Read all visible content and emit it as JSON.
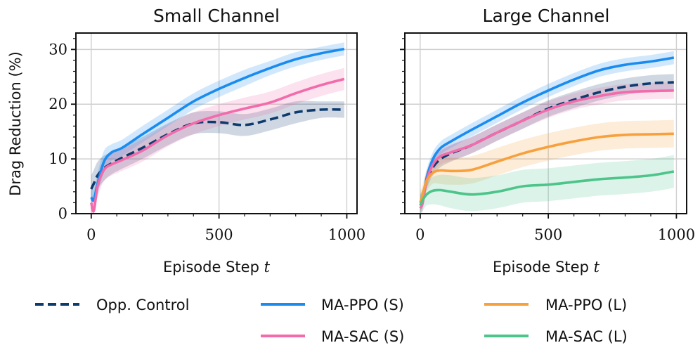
{
  "chart_data": [
    {
      "type": "line",
      "title": "Small Channel",
      "xlabel": "Episode Step",
      "xlabel_var": "t",
      "ylabel": "Drag Reduction (%)",
      "xlim": [
        -60,
        1040
      ],
      "ylim": [
        0,
        33
      ],
      "xticks": [
        0,
        500,
        1000
      ],
      "yticks": [
        0,
        10,
        20,
        30
      ],
      "grid": true,
      "series": [
        {
          "name": "Opp. Control",
          "color": "#0d3b6e",
          "dash": true,
          "x": [
            0,
            10,
            25,
            50,
            80,
            120,
            200,
            300,
            400,
            500,
            600,
            700,
            800,
            900,
            990
          ],
          "y": [
            4.5,
            5.5,
            7,
            8.3,
            9.2,
            10.2,
            12,
            14.5,
            16.5,
            16.7,
            16.2,
            17.2,
            18.5,
            19,
            19
          ],
          "band": [
            2.5,
            2.5,
            2.5,
            2.3,
            2,
            2,
            2,
            2,
            2,
            2,
            2,
            2,
            2,
            1.5,
            1.5
          ]
        },
        {
          "name": "MA-PPO (S)",
          "color": "#1a8cf0",
          "dash": false,
          "x": [
            0,
            10,
            25,
            50,
            80,
            120,
            200,
            300,
            400,
            500,
            600,
            700,
            800,
            900,
            990
          ],
          "y": [
            3,
            2.5,
            5.5,
            9.5,
            11.2,
            12,
            14.5,
            17.5,
            20.5,
            22.8,
            24.8,
            26.6,
            28.2,
            29.3,
            30.1
          ],
          "band": [
            2,
            2,
            2,
            2,
            1.5,
            1.5,
            1.5,
            1.5,
            1.5,
            1.5,
            1.5,
            1.3,
            1.3,
            1.2,
            1.2
          ]
        },
        {
          "name": "MA-SAC (S)",
          "color": "#f26bab",
          "dash": false,
          "x": [
            0,
            10,
            25,
            50,
            80,
            120,
            200,
            300,
            400,
            500,
            600,
            700,
            800,
            900,
            990
          ],
          "y": [
            2,
            0.5,
            5,
            8,
            9,
            9.8,
            11.5,
            14.3,
            16.5,
            18,
            19.2,
            20.3,
            22,
            23.5,
            24.6
          ],
          "band": [
            2,
            2,
            2,
            2,
            2,
            2,
            2,
            2,
            2,
            2,
            2,
            2,
            2,
            2,
            2
          ]
        }
      ]
    },
    {
      "type": "line",
      "title": "Large Channel",
      "xlabel": "Episode Step",
      "xlabel_var": "t",
      "ylabel": "",
      "xlim": [
        -60,
        1040
      ],
      "ylim": [
        0,
        33
      ],
      "xticks": [
        0,
        500,
        1000
      ],
      "yticks": [
        0,
        10,
        20,
        30
      ],
      "grid": true,
      "series": [
        {
          "name": "Opp. Control",
          "color": "#0d3b6e",
          "dash": true,
          "x": [
            0,
            10,
            25,
            50,
            80,
            120,
            200,
            300,
            400,
            500,
            600,
            700,
            800,
            900,
            990
          ],
          "y": [
            2,
            3,
            6,
            8.5,
            10,
            11,
            12.5,
            14.8,
            17,
            19.2,
            20.8,
            22.2,
            23.2,
            23.8,
            24
          ],
          "band": [
            1.5,
            1.5,
            1.5,
            1.5,
            1.5,
            1.5,
            1.5,
            1.5,
            1.5,
            1.5,
            1.5,
            1.5,
            1.5,
            1.5,
            1.5
          ]
        },
        {
          "name": "MA-PPO (S)",
          "color": "#1a8cf0",
          "dash": false,
          "x": [
            0,
            10,
            25,
            50,
            80,
            120,
            200,
            300,
            400,
            500,
            600,
            700,
            800,
            900,
            990
          ],
          "y": [
            1.5,
            2.5,
            6.5,
            10,
            12,
            13.2,
            15.3,
            17.8,
            20.3,
            22.5,
            24.5,
            26.2,
            27.2,
            27.8,
            28.5
          ],
          "band": [
            1.5,
            1.5,
            1.5,
            1.3,
            1.2,
            1.2,
            1.2,
            1.2,
            1.2,
            1.2,
            1.2,
            1.2,
            1.2,
            1.2,
            1.2
          ]
        },
        {
          "name": "MA-SAC (S)",
          "color": "#f26bab",
          "dash": false,
          "x": [
            0,
            10,
            25,
            50,
            80,
            120,
            200,
            300,
            400,
            500,
            600,
            700,
            800,
            900,
            990
          ],
          "y": [
            1,
            2,
            6,
            9,
            10.5,
            11.2,
            12.5,
            14.8,
            17,
            19,
            20.5,
            21.5,
            22.2,
            22.4,
            22.5
          ],
          "band": [
            1.5,
            1.5,
            1.5,
            1.5,
            1.5,
            1.5,
            1.5,
            1.5,
            1.5,
            1.5,
            1.5,
            1.5,
            1.5,
            1.5,
            1.5
          ]
        },
        {
          "name": "MA-PPO (L)",
          "color": "#f7a03c",
          "dash": false,
          "x": [
            0,
            10,
            25,
            50,
            80,
            120,
            200,
            300,
            400,
            500,
            600,
            700,
            800,
            900,
            990
          ],
          "y": [
            2,
            3.5,
            6,
            7.5,
            7.9,
            7.8,
            8,
            9.5,
            11,
            12.2,
            13.2,
            14,
            14.4,
            14.5,
            14.6
          ],
          "band": [
            2,
            2,
            2,
            2,
            2.5,
            2.5,
            2.5,
            2.5,
            2.5,
            2.5,
            2.5,
            2.5,
            2.5,
            2.5,
            2.5
          ]
        },
        {
          "name": "MA-SAC (L)",
          "color": "#4cc48a",
          "dash": false,
          "x": [
            0,
            10,
            25,
            50,
            80,
            120,
            200,
            300,
            400,
            500,
            600,
            700,
            800,
            900,
            990
          ],
          "y": [
            1.5,
            2.5,
            3.5,
            4.2,
            4.3,
            4,
            3.5,
            4,
            5,
            5.3,
            5.8,
            6.3,
            6.6,
            7,
            7.7
          ],
          "band": [
            2,
            2,
            2,
            2.5,
            2.8,
            3,
            3,
            3,
            3,
            3,
            3,
            3,
            3,
            3,
            3
          ]
        }
      ]
    }
  ],
  "legend": [
    {
      "label": "Opp. Control",
      "color": "#0d3b6e",
      "dash": true
    },
    {
      "label": "MA-PPO (S)",
      "color": "#1a8cf0",
      "dash": false
    },
    {
      "label": "MA-PPO (L)",
      "color": "#f7a03c",
      "dash": false
    },
    {
      "label": "MA-SAC (S)",
      "color": "#f26bab",
      "dash": false
    },
    {
      "label": "MA-SAC (L)",
      "color": "#4cc48a",
      "dash": false
    }
  ]
}
